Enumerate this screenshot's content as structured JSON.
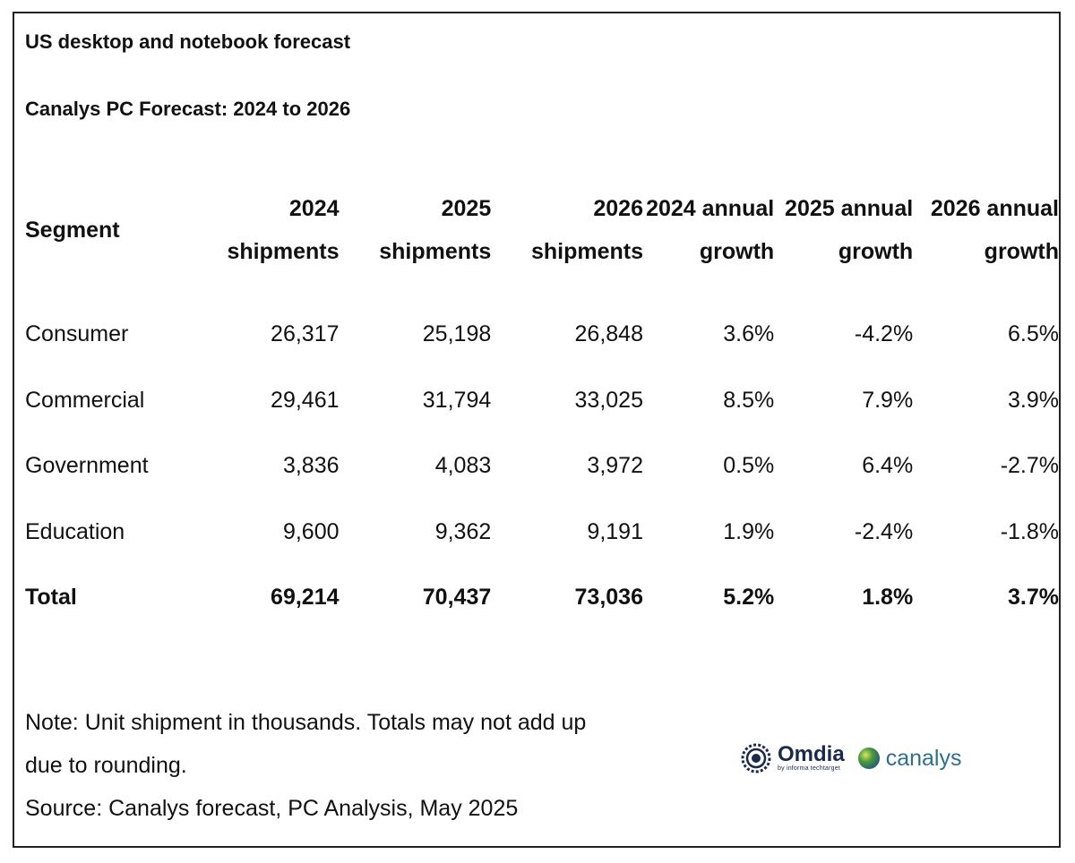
{
  "chart_data": {
    "type": "table",
    "title": "US desktop and notebook forecast",
    "subtitle": "Canalys PC Forecast: 2024 to 2026",
    "columns": [
      "Segment",
      "2024 shipments",
      "2025 shipments",
      "2026 shipments",
      "2024 annual growth",
      "2025 annual growth",
      "2026 annual growth"
    ],
    "rows": [
      {
        "segment": "Consumer",
        "s2024": "26,317",
        "s2025": "25,198",
        "s2026": "26,848",
        "g2024": "3.6%",
        "g2025": "-4.2%",
        "g2026": "6.5%"
      },
      {
        "segment": "Commercial",
        "s2024": "29,461",
        "s2025": "31,794",
        "s2026": "33,025",
        "g2024": "8.5%",
        "g2025": "7.9%",
        "g2026": "3.9%"
      },
      {
        "segment": "Government",
        "s2024": "3,836",
        "s2025": "4,083",
        "s2026": "3,972",
        "g2024": "0.5%",
        "g2025": "6.4%",
        "g2026": "-2.7%"
      },
      {
        "segment": "Education",
        "s2024": "9,600",
        "s2025": "9,362",
        "s2026": "9,191",
        "g2024": "1.9%",
        "g2025": "-2.4%",
        "g2026": "-1.8%"
      },
      {
        "segment": "Total",
        "s2024": "69,214",
        "s2025": "70,437",
        "s2026": "73,036",
        "g2024": "5.2%",
        "g2025": "1.8%",
        "g2026": "3.7%"
      }
    ],
    "note_line1": "Note: Unit shipment in thousands. Totals may not add up",
    "note_line2": "due to rounding.",
    "source": "Source: Canalys forecast, PC Analysis, May 2025"
  },
  "logos": {
    "omdia": "Omdia",
    "omdia_byline": "by informa techtarget",
    "canalys": "canalys"
  },
  "colors": {
    "border": "#222222",
    "text": "#111111",
    "omdia_navy": "#1a2a4a",
    "canalys_teal": "#2e6f8f"
  }
}
